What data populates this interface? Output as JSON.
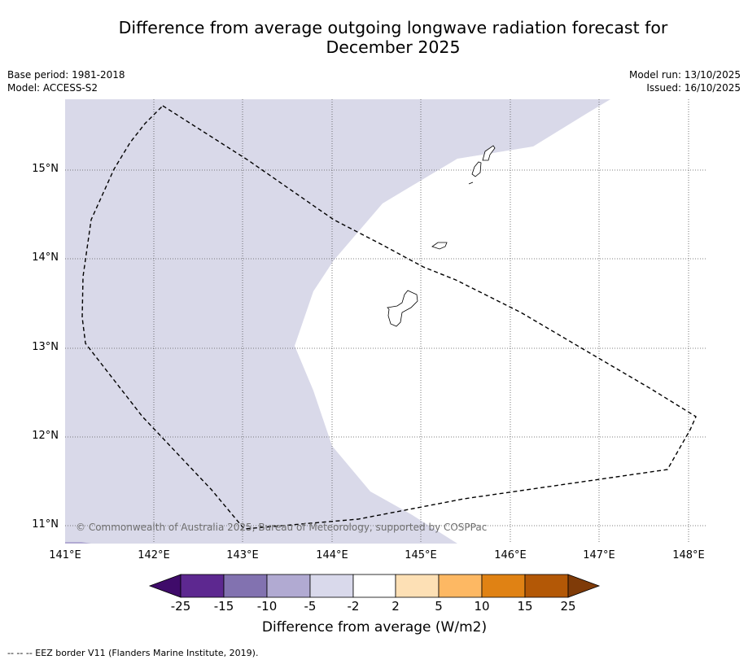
{
  "header": {
    "title_line1": "Difference from average outgoing longwave radiation forecast for",
    "title_line2": "December 2025",
    "base_period": "Base period: 1981-2018",
    "model": "Model: ACCESS-S2",
    "model_run": "Model run: 13/10/2025",
    "issued": "Issued: 16/10/2025"
  },
  "map": {
    "lat_ticks": [
      "15°N",
      "14°N",
      "13°N",
      "12°N",
      "11°N"
    ],
    "lon_ticks": [
      "141°E",
      "142°E",
      "143°E",
      "144°E",
      "145°E",
      "146°E",
      "147°E",
      "148°E"
    ],
    "lon_range": [
      141.0,
      148.2
    ],
    "lat_range": [
      10.8,
      15.8
    ],
    "credit": "© Commonwealth of Australia 2025, Bureau of Meteorology, supported by COSPPac",
    "anomaly_fill_color": "#d9d9e9",
    "neutral_fill_color": "#ffffff",
    "eez_color": "#000000"
  },
  "colorbar": {
    "title": "Difference from average (W/m2)",
    "labels": [
      "-25",
      "-15",
      "-10",
      "-5",
      "-2",
      "2",
      "5",
      "10",
      "15",
      "25"
    ],
    "colors": [
      "#3f0b6a",
      "#5d2890",
      "#8272b0",
      "#b1aad2",
      "#d9d9eb",
      "#ffffff",
      "#fde0b5",
      "#fdb863",
      "#e08214",
      "#b35806",
      "#7f3b08"
    ]
  },
  "footnote": "--  --  -- EEZ border V11 (Flanders Marine Institute, 2019)."
}
